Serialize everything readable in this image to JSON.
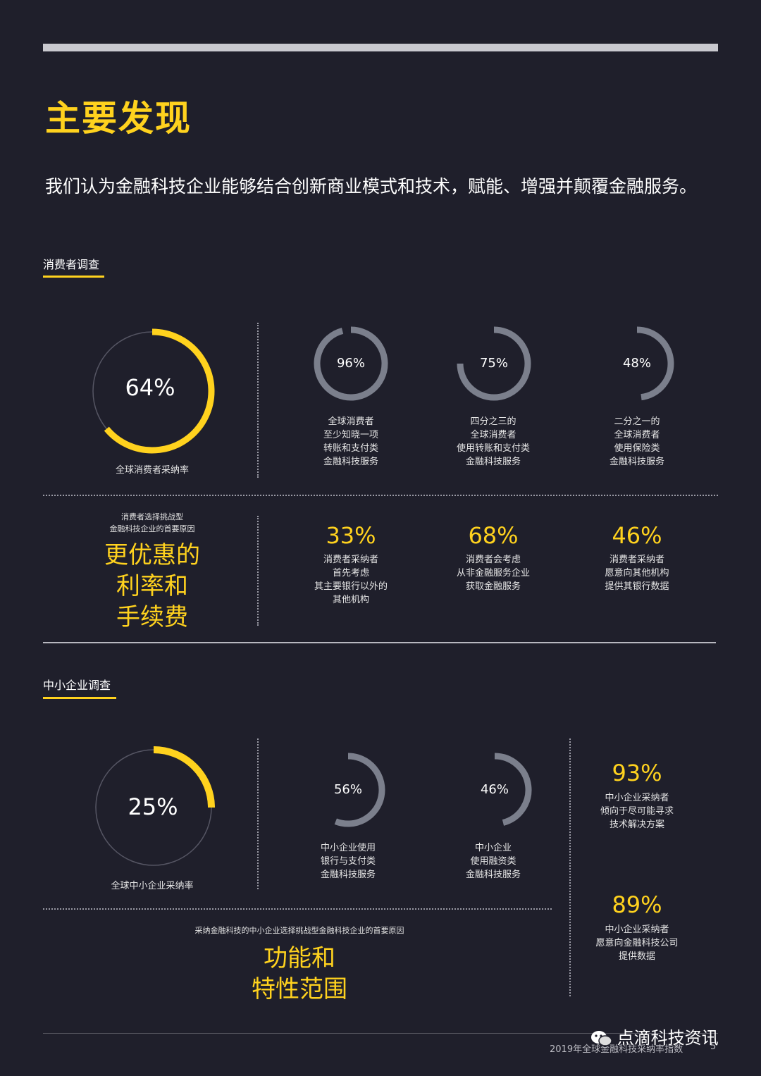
{
  "page": {
    "title": "主要发现",
    "intro": "我们认为金融科技企业能够结合创新商业模式和技术，赋能、增强并颠覆金融服务。"
  },
  "consumer": {
    "label": "消费者调查",
    "main": {
      "value": "64%",
      "fraction": 0.64,
      "caption": "全球消费者采纳率"
    },
    "donuts": [
      {
        "value": "96%",
        "fraction": 0.96,
        "caption": "全球消费者\n至少知晓一项\n转账和支付类\n金融科技服务"
      },
      {
        "value": "75%",
        "fraction": 0.75,
        "caption": "四分之三的\n全球消费者\n使用转账和支付类\n金融科技服务"
      },
      {
        "value": "48%",
        "fraction": 0.48,
        "caption": "二分之一的\n全球消费者\n使用保险类\n金融科技服务"
      }
    ],
    "reason_intro": "消费者选择挑战型\n金融科技企业的首要原因",
    "reason": "更优惠的\n利率和\n手续费",
    "stats": [
      {
        "value": "33%",
        "caption": "消费者采纳者\n首先考虑\n其主要银行以外的\n其他机构"
      },
      {
        "value": "68%",
        "caption": "消费者会考虑\n从非金融服务企业\n获取金融服务"
      },
      {
        "value": "46%",
        "caption": "消费者采纳者\n愿意向其他机构\n提供其银行数据"
      }
    ]
  },
  "sme": {
    "label": "中小企业调查",
    "main": {
      "value": "25%",
      "fraction": 0.25,
      "caption": "全球中小企业采纳率"
    },
    "donuts": [
      {
        "value": "56%",
        "fraction": 0.56,
        "caption": "中小企业使用\n银行与支付类\n金融科技服务"
      },
      {
        "value": "46%",
        "fraction": 0.46,
        "caption": "中小企业\n使用融资类\n金融科技服务"
      }
    ],
    "stats": [
      {
        "value": "93%",
        "caption": "中小企业采纳者\n倾向于尽可能寻求\n技术解决方案"
      },
      {
        "value": "89%",
        "caption": "中小企业采纳者\n愿意向金融科技公司\n提供数据"
      }
    ],
    "reason_intro": "采纳金融科技的中小企业选择挑战型金融科技企业的首要原因",
    "reason": "功能和\n特性范围"
  },
  "footer": {
    "text": "2019年全球金融科技采纳率指数",
    "watermark": "点滴科技资讯",
    "page_number": "5"
  },
  "colors": {
    "background": "#1f1f2b",
    "accent": "#ffd21e",
    "ring_gray": "#7b7f8c"
  }
}
